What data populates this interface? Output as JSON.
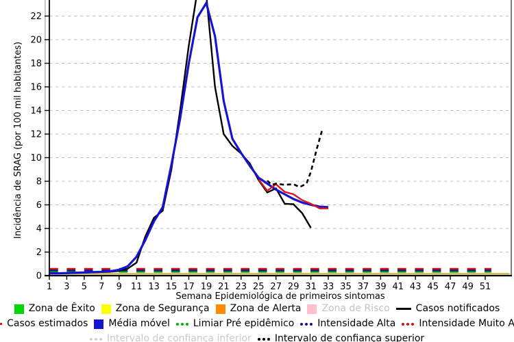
{
  "chart_data": {
    "type": "line",
    "title": "",
    "xlabel": "Semana Epidemiológica de primeiros sintomas",
    "ylabel": "Incidência de SRAG (por 100 mil habitantes)",
    "xlim": [
      1,
      53.8
    ],
    "ylim": [
      0,
      23.4
    ],
    "grid": "horizontal-dashed",
    "xticks": [
      1,
      3,
      5,
      7,
      9,
      11,
      13,
      15,
      17,
      19,
      21,
      23,
      25,
      27,
      29,
      31,
      33,
      35,
      37,
      39,
      41,
      43,
      45,
      47,
      49,
      51
    ],
    "yticks": [
      0,
      2,
      4,
      6,
      8,
      10,
      12,
      14,
      16,
      18,
      20,
      22
    ],
    "colors": {
      "notificados": "#000000",
      "estimados": "#e01717",
      "media_movel": "#1414d2",
      "limiar_pre_epidemico": "#00a318",
      "intensidade_alta": "#14148c",
      "intensidade_muito_alta": "#cc1414",
      "zona_seguranca_line": "#d9b84a",
      "gridline": "#bdbdbd"
    },
    "series": [
      {
        "id": "zona-seguranca-line",
        "label": "Zona de Segurança",
        "color": "#d9b84a",
        "width": 2.4,
        "dash": "",
        "x": [
          0.95,
          53.8
        ],
        "y": [
          0.16,
          0.16
        ]
      },
      {
        "id": "limiar-pre-epidemico",
        "label": "Limiar Pré epidêmico",
        "color": "#00a318",
        "width": 2.6,
        "dash": "12.7 12.7",
        "x": [
          1,
          51.7
        ],
        "y": [
          0.33,
          0.33
        ]
      },
      {
        "id": "intensidade-alta",
        "label": "Intensidade Alta",
        "color": "#14148c",
        "width": 2.6,
        "dash": "12.7 12.7",
        "x": [
          1,
          51.7
        ],
        "y": [
          0.45,
          0.45
        ]
      },
      {
        "id": "intensidade-muito-alta",
        "label": "Intensidade Muito Alta",
        "color": "#cc1414",
        "width": 2.6,
        "dash": "12.7 12.7",
        "x": [
          1,
          51.7
        ],
        "y": [
          0.58,
          0.58
        ]
      },
      {
        "id": "casos-notificados",
        "label": "Casos notificados",
        "color": "#000000",
        "width": 2.4,
        "dash": "",
        "x": [
          1,
          2,
          3,
          4,
          5,
          6,
          7,
          8,
          9,
          10,
          11,
          12,
          13,
          14,
          15,
          16,
          17,
          18,
          19,
          20,
          21,
          22,
          23,
          24,
          25,
          26,
          27,
          28,
          29,
          30,
          31
        ],
        "y": [
          0.2,
          0.2,
          0.2,
          0.22,
          0.25,
          0.28,
          0.3,
          0.33,
          0.4,
          0.6,
          1.1,
          3.3,
          4.9,
          5.5,
          9.0,
          14.0,
          19.5,
          24.2,
          23.8,
          16.0,
          12.0,
          11.0,
          10.35,
          9.5,
          8.1,
          7.05,
          7.4,
          6.1,
          6.05,
          5.3,
          4.05
        ]
      },
      {
        "id": "media-movel",
        "label": "Média móvel",
        "color": "#1414d2",
        "width": 3.2,
        "dash": "",
        "x": [
          1,
          2,
          3,
          4,
          5,
          6,
          7,
          8,
          9,
          10,
          11,
          12,
          13,
          14,
          15,
          16,
          17,
          18,
          19,
          20,
          21,
          22,
          23,
          24,
          25,
          26,
          27,
          28,
          29,
          30,
          31,
          32,
          33
        ],
        "y": [
          0.2,
          0.2,
          0.22,
          0.25,
          0.27,
          0.3,
          0.33,
          0.38,
          0.5,
          0.8,
          1.6,
          3.0,
          4.6,
          5.8,
          9.4,
          13.3,
          18.0,
          21.9,
          23.1,
          20.3,
          14.8,
          11.6,
          10.4,
          9.3,
          8.3,
          7.8,
          7.3,
          6.9,
          6.5,
          6.2,
          6.0,
          5.85,
          5.8
        ]
      },
      {
        "id": "casos-estimados",
        "label": "Casos estimados",
        "color": "#e01717",
        "width": 2.4,
        "dash": "",
        "x": [
          25,
          26,
          27,
          28,
          29,
          30,
          31,
          32,
          33
        ],
        "y": [
          8.15,
          7.2,
          7.75,
          7.1,
          6.9,
          6.4,
          6.1,
          5.7,
          5.7
        ]
      },
      {
        "id": "intervalo-confianca-superior",
        "label": "Intervalo de confiança superior",
        "color": "#000000",
        "width": 2.6,
        "dash": "6 4.5",
        "x": [
          26,
          26.5,
          27,
          28,
          29,
          29.7,
          30.5,
          31,
          31.7,
          32.3
        ],
        "y": [
          8.05,
          7.7,
          7.8,
          7.7,
          7.75,
          7.5,
          7.8,
          8.8,
          10.8,
          12.35
        ]
      }
    ]
  },
  "legend": {
    "rows": [
      [
        {
          "marker": "square",
          "color": "#00d900",
          "label": "Zona de Êxito"
        },
        {
          "marker": "square",
          "color": "#ffff00",
          "label": "Zona de Segurança"
        },
        {
          "marker": "square",
          "color": "#ff8c00",
          "label": "Zona de Alerta"
        },
        {
          "marker": "square",
          "color": "#ffc0cb",
          "label": "Zona de Risco",
          "text_color": "#c3c3c3"
        },
        {
          "marker": "line",
          "color": "#000000",
          "label": "Casos notificados"
        }
      ],
      [
        {
          "marker": "line",
          "color": "#e01717",
          "label": "Casos estimados"
        },
        {
          "marker": "square",
          "color": "#1414d2",
          "label": "Média móvel"
        },
        {
          "marker": "dots",
          "color": "#00b400",
          "label": "Limiar Pré epidêmico"
        },
        {
          "marker": "dots",
          "color": "#14148c",
          "label": "Intensidade Alta"
        },
        {
          "marker": "dots",
          "color": "#cc1414",
          "label": "Intensidade Muito Alta"
        }
      ],
      [
        {
          "marker": "dots",
          "color": "#d8cccc",
          "label": "Intervalo de confiança inferior",
          "text_color": "#c9c9c9"
        },
        {
          "marker": "dots",
          "color": "#000000",
          "label": "Intervalo de confiança superior"
        }
      ]
    ]
  }
}
